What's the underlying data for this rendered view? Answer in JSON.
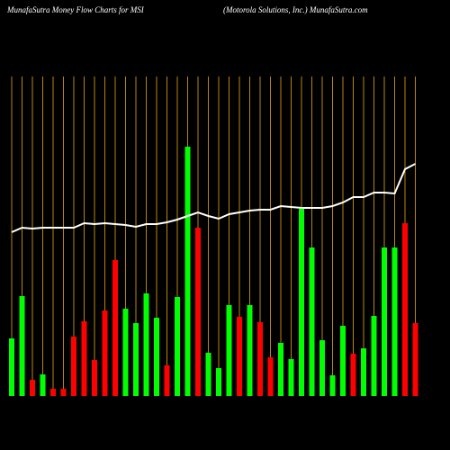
{
  "chart_data": {
    "type": "bar",
    "title": "MunafaSutra  Money Flow  Charts for MSI",
    "subtitle": "(Motorola  Solutions,  Inc.) MunafaSutra.com",
    "categories": [
      null,
      null,
      null,
      null,
      null,
      null,
      null,
      null,
      null,
      null,
      null,
      null,
      null,
      null,
      null,
      null,
      null,
      null,
      null,
      null,
      null,
      null,
      null,
      null,
      null,
      null,
      null,
      null,
      null,
      null,
      null,
      null,
      null,
      null,
      null,
      null,
      null,
      null,
      null,
      null
    ],
    "values": [
      64,
      111,
      18,
      24,
      8,
      8,
      66,
      83,
      40,
      95,
      151,
      97,
      81,
      114,
      87,
      34,
      110,
      277,
      187,
      48,
      31,
      101,
      88,
      101,
      82,
      43,
      59,
      41,
      208,
      165,
      62,
      23,
      78,
      47,
      53,
      89,
      165,
      165,
      192,
      81
    ],
    "colors": [
      "#00ff00",
      "#00ff00",
      "#ff0000",
      "#00ff00",
      "#ff0000",
      "#ff0000",
      "#ff0000",
      "#ff0000",
      "#ff0000",
      "#ff0000",
      "#ff0000",
      "#00ff00",
      "#00ff00",
      "#00ff00",
      "#00ff00",
      "#ff0000",
      "#00ff00",
      "#00ff00",
      "#ff0000",
      "#00ff00",
      "#00ff00",
      "#00ff00",
      "#ff0000",
      "#00ff00",
      "#ff0000",
      "#ff0000",
      "#00ff00",
      "#00ff00",
      "#00ff00",
      "#00ff00",
      "#00ff00",
      "#00ff00",
      "#00ff00",
      "#ff0000",
      "#00ff00",
      "#00ff00",
      "#00ff00",
      "#00ff00",
      "#ff0000",
      "#ff0000"
    ],
    "line_values": [
      182,
      187,
      186,
      187,
      187,
      187,
      187,
      192,
      191,
      192,
      191,
      190,
      188,
      191,
      191,
      193,
      196,
      200,
      204,
      200,
      197,
      202,
      204,
      206,
      207,
      207,
      211,
      210,
      209,
      209,
      209,
      211,
      215,
      221,
      221,
      226,
      226,
      225,
      252,
      258
    ],
    "line_color": "#ffffff",
    "grid_color": "#b8860b",
    "ylim": [
      0,
      355
    ],
    "grid": true
  }
}
